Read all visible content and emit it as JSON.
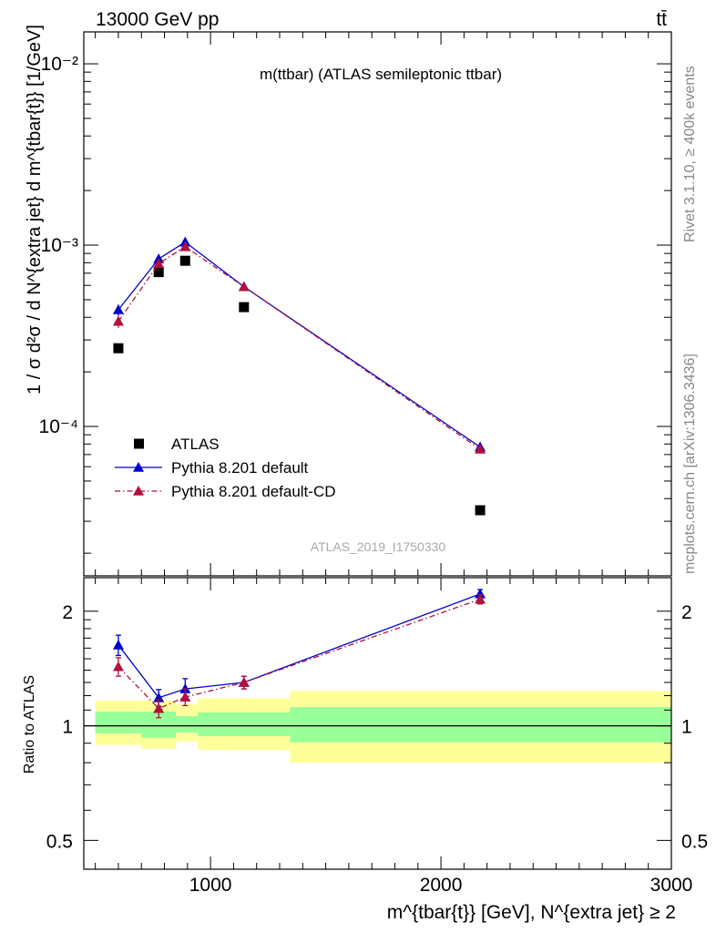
{
  "chart_data": [
    {
      "type": "scatter",
      "title": "m(ttbar) (ATLAS semileptonic ttbar)",
      "header_left": "13000 GeV pp",
      "header_right": "tt̄",
      "ylabel": "1 / σ d²σ / d N^{extra jet} d m^{tbar{t}} [1/GeV]",
      "yscale": "log",
      "ylim": [
        1.5e-05,
        0.015
      ],
      "xlim": [
        450,
        3000
      ],
      "y_tick_labels": [
        "10⁻²",
        "10⁻³",
        "10⁻⁴"
      ],
      "analysis_id": "ATLAS_2019_I1750330",
      "legend_placement": "lower-left",
      "series": [
        {
          "name": "ATLAS",
          "color": "#000000",
          "marker": "square",
          "x": [
            600,
            775,
            890,
            1145,
            2170
          ],
          "y": [
            0.00027,
            0.00071,
            0.00082,
            0.000455,
            3.45e-05
          ]
        },
        {
          "name": "Pythia 8.201 default",
          "color": "#0000cc",
          "marker": "triangle",
          "line": "solid",
          "x": [
            600,
            775,
            890,
            1145,
            2170
          ],
          "y": [
            0.00044,
            0.00084,
            0.00104,
            0.00059,
            7.7e-05
          ],
          "yerr": [
            3e-05,
            4e-05,
            6e-05,
            2e-05,
            5e-06
          ]
        },
        {
          "name": "Pythia 8.201 default-CD",
          "color": "#b0103a",
          "marker": "triangle",
          "line": "dash-dot",
          "x": [
            600,
            775,
            890,
            1145,
            2170
          ],
          "y": [
            0.00038,
            0.00079,
            0.00098,
            0.00059,
            7.5e-05
          ],
          "yerr": [
            3e-05,
            4e-05,
            5e-05,
            2e-05,
            4e-06
          ]
        }
      ]
    },
    {
      "type": "scatter",
      "ylabel": "Ratio to ATLAS",
      "xlabel": "m^{tbar{t}} [GeV], N^{extra jet} ≥ 2",
      "yscale": "log",
      "ylim": [
        0.42,
        2.45
      ],
      "xlim": [
        450,
        3000
      ],
      "y_tick_labels": [
        "2",
        "1",
        "0.5"
      ],
      "x_tick_labels": [
        "1000",
        "2000",
        "3000"
      ],
      "reference_line": 1,
      "bands": [
        {
          "x0": 500,
          "x1": 700,
          "green": [
            0.955,
            1.09
          ],
          "yellow": [
            0.89,
            1.165
          ]
        },
        {
          "x0": 700,
          "x1": 850,
          "green": [
            0.93,
            1.09
          ],
          "yellow": [
            0.87,
            1.165
          ]
        },
        {
          "x0": 850,
          "x1": 945,
          "green": [
            0.96,
            1.06
          ],
          "yellow": [
            0.91,
            1.14
          ]
        },
        {
          "x0": 945,
          "x1": 1345,
          "green": [
            0.94,
            1.085
          ],
          "yellow": [
            0.865,
            1.18
          ]
        },
        {
          "x0": 1345,
          "x1": 3000,
          "green": [
            0.905,
            1.12
          ],
          "yellow": [
            0.8,
            1.235
          ]
        }
      ],
      "series": [
        {
          "name": "Pythia 8.201 default",
          "color": "#0000cc",
          "x": [
            600,
            775,
            890,
            1145,
            2170
          ],
          "y": [
            1.63,
            1.185,
            1.25,
            1.3,
            2.22
          ],
          "yerr": [
            0.1,
            0.06,
            0.08,
            0.05,
            0.06
          ]
        },
        {
          "name": "Pythia 8.201 default-CD",
          "color": "#b0103a",
          "x": [
            600,
            775,
            890,
            1145,
            2170
          ],
          "y": [
            1.43,
            1.11,
            1.19,
            1.3,
            2.15
          ],
          "yerr": [
            0.08,
            0.06,
            0.06,
            0.05,
            0.06
          ]
        }
      ]
    }
  ],
  "side_text": {
    "rivet": "Rivet 3.1.10, ≥ 400k events",
    "mcplots": "mcplots.cern.ch [arXiv:1306.3436]"
  }
}
